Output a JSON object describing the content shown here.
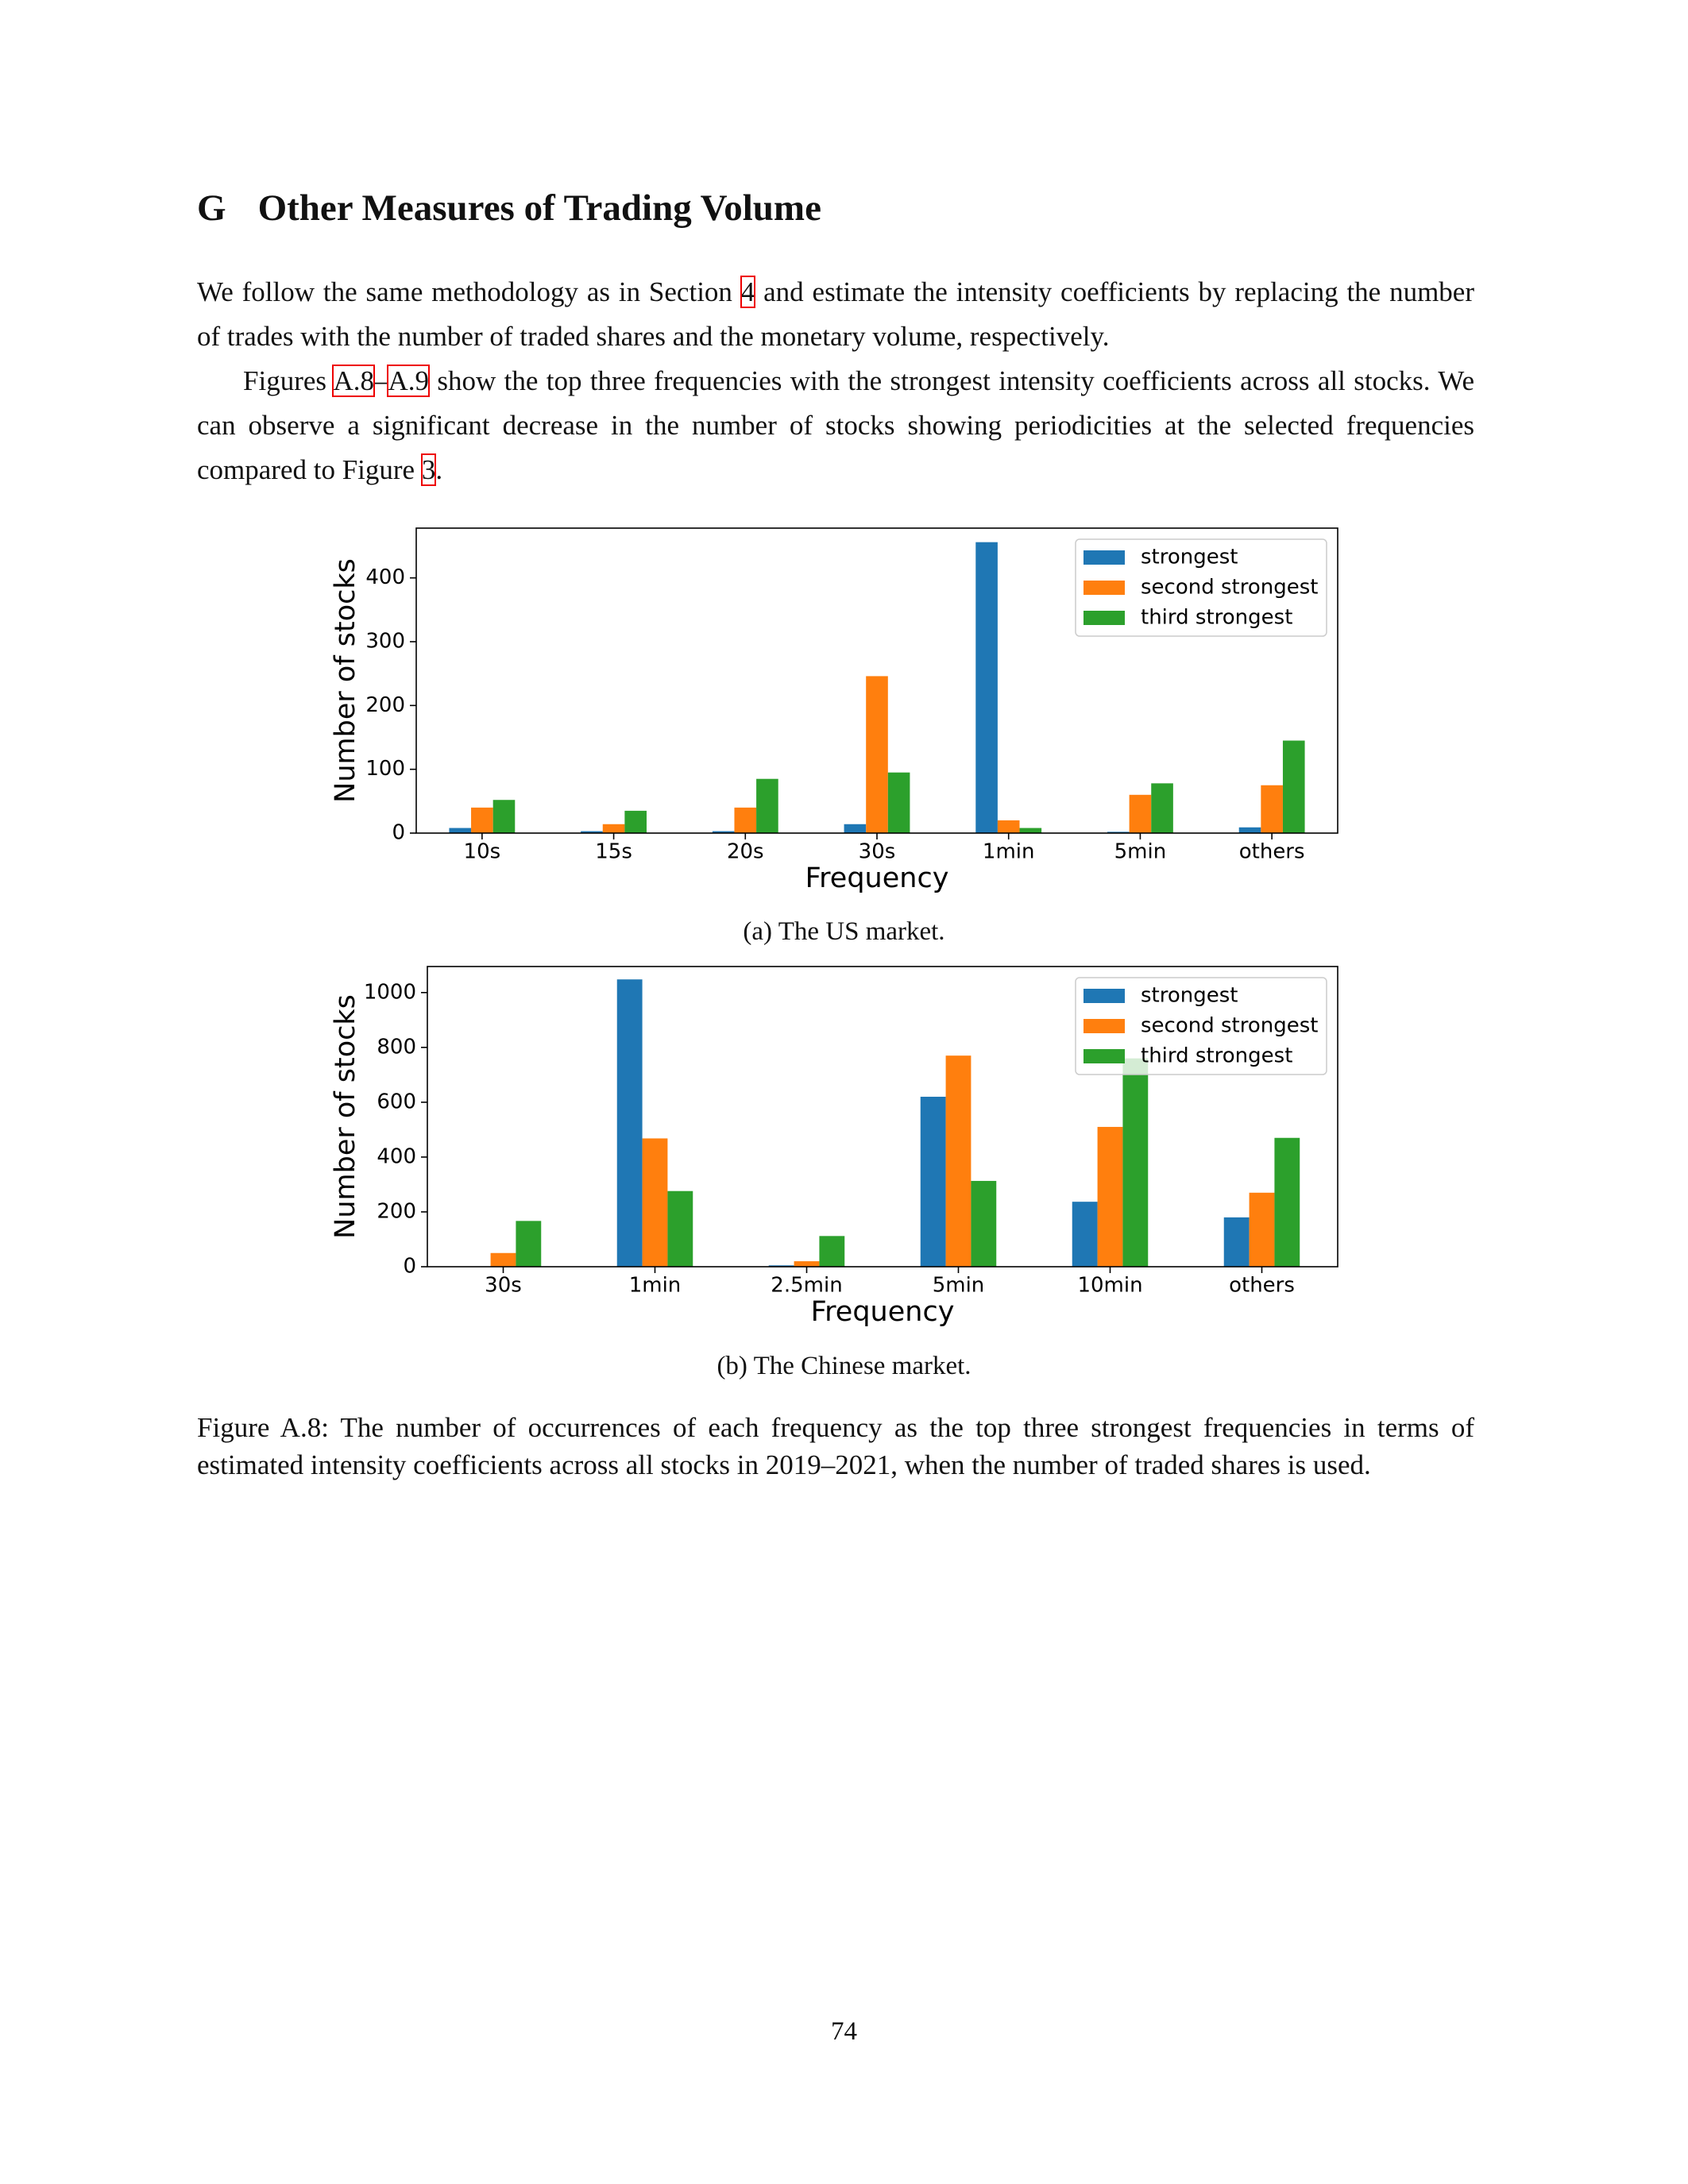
{
  "section": {
    "number": "G",
    "title": "Other Measures of Trading Volume"
  },
  "paragraphs": [
    [
      {
        "text": "We follow the same methodology as in Section "
      },
      {
        "text": "4",
        "link": true
      },
      {
        "text": " and estimate the intensity coefficients by replacing the number of trades with the number of traded shares and the monetary volume, respectively."
      }
    ],
    [
      {
        "text": "Figures "
      },
      {
        "text": "A.8",
        "link": true
      },
      {
        "text": "–"
      },
      {
        "text": "A.9",
        "link": true
      },
      {
        "text": " show the top three frequencies with the strongest intensity coefficients across all stocks. We can observe a significant decrease in the number of stocks showing periodicities at the selected frequencies compared to Figure "
      },
      {
        "text": "3",
        "link": true
      },
      {
        "text": "."
      }
    ]
  ],
  "chart_data": [
    {
      "type": "bar",
      "subcaption": "(a) The US market.",
      "xlabel": "Frequency",
      "ylabel": "Number of stocks",
      "categories": [
        "10s",
        "15s",
        "20s",
        "30s",
        "1min",
        "5min",
        "others"
      ],
      "series": [
        {
          "name": "strongest",
          "color": "#1f77b4",
          "values": [
            8,
            3,
            3,
            14,
            456,
            2,
            9
          ]
        },
        {
          "name": "second strongest",
          "color": "#ff7f0e",
          "values": [
            40,
            14,
            40,
            246,
            20,
            60,
            75
          ]
        },
        {
          "name": "third strongest",
          "color": "#2ca02c",
          "values": [
            52,
            35,
            85,
            95,
            8,
            78,
            145
          ]
        }
      ],
      "ylim": [
        0,
        478
      ],
      "yticks": [
        0,
        100,
        200,
        300,
        400
      ],
      "legend": "upper right"
    },
    {
      "type": "bar",
      "subcaption": "(b) The Chinese market.",
      "xlabel": "Frequency",
      "ylabel": "Number of stocks",
      "categories": [
        "30s",
        "1min",
        "2.5min",
        "5min",
        "10min",
        "others"
      ],
      "series": [
        {
          "name": "strongest",
          "color": "#1f77b4",
          "values": [
            0,
            1048,
            5,
            620,
            237,
            180
          ]
        },
        {
          "name": "second strongest",
          "color": "#ff7f0e",
          "values": [
            50,
            468,
            20,
            770,
            510,
            270
          ]
        },
        {
          "name": "third strongest",
          "color": "#2ca02c",
          "values": [
            167,
            276,
            112,
            313,
            760,
            470
          ]
        }
      ],
      "ylim": [
        0,
        1095
      ],
      "yticks": [
        0,
        200,
        400,
        600,
        800,
        1000
      ],
      "legend": "upper right"
    }
  ],
  "caption": "Figure A.8: The number of occurrences of each frequency as the top three strongest frequencies in terms of estimated intensity coefficients across all stocks in 2019–2021, when the number of traded shares is used.",
  "page_number": "74"
}
